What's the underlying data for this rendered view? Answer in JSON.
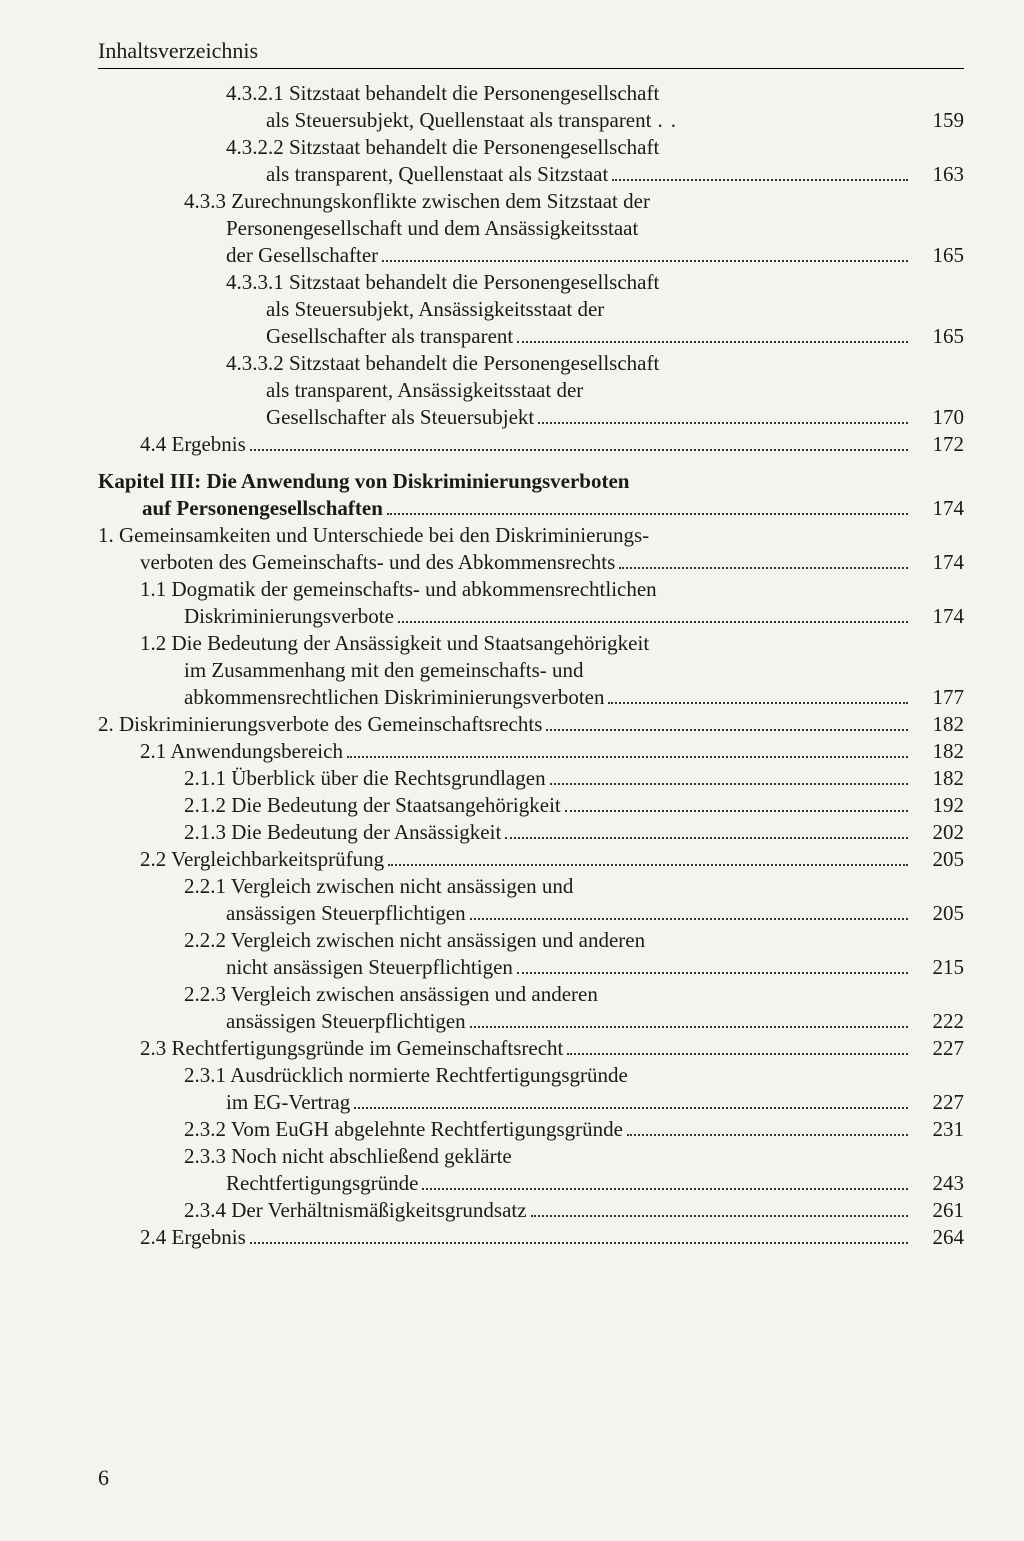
{
  "header": "Inhaltsverzeichnis",
  "page_number": "6",
  "entries": [
    {
      "indent": 3,
      "lines": [
        "4.3.2.1 Sitzstaat behandelt die Personengesellschaft",
        "als Steuersubjekt, Quellenstaat als transparent"
      ],
      "cont_indent": 4,
      "page": "159",
      "dots": "sparse"
    },
    {
      "indent": 3,
      "lines": [
        "4.3.2.2 Sitzstaat behandelt die Personengesellschaft",
        "als transparent, Quellenstaat als Sitzstaat"
      ],
      "cont_indent": 4,
      "page": "163"
    },
    {
      "indent": 2,
      "lines": [
        "4.3.3  Zurechnungskonflikte zwischen dem Sitzstaat der",
        "Personengesellschaft und dem Ansässigkeitsstaat",
        "der Gesellschafter"
      ],
      "cont_indent": 3,
      "page": "165"
    },
    {
      "indent": 3,
      "lines": [
        "4.3.3.1 Sitzstaat behandelt die Personengesellschaft",
        "als Steuersubjekt, Ansässigkeitsstaat der",
        "Gesellschafter als transparent"
      ],
      "cont_indent": 4,
      "page": "165"
    },
    {
      "indent": 3,
      "lines": [
        "4.3.3.2 Sitzstaat behandelt die Personengesellschaft",
        "als transparent, Ansässigkeitsstaat der",
        "Gesellschafter als Steuersubjekt"
      ],
      "cont_indent": 4,
      "page": "170"
    },
    {
      "indent": 1,
      "lines": [
        "4.4  Ergebnis"
      ],
      "page": "172"
    },
    {
      "indent": 0,
      "lines": [
        "Kapitel III: Die Anwendung von Diskriminierungsverboten",
        "auf Personengesellschaften"
      ],
      "cont_indent": 0,
      "cont_pad": 44,
      "page": "174",
      "bold": true,
      "gap_before": 12
    },
    {
      "indent": 0,
      "lines": [
        "1.  Gemeinsamkeiten und Unterschiede bei den Diskriminierungs-",
        "verboten des Gemeinschafts- und des Abkommensrechts"
      ],
      "cont_indent": 1,
      "page": "174"
    },
    {
      "indent": 1,
      "lines": [
        "1.1  Dogmatik der gemeinschafts- und abkommensrechtlichen",
        "Diskriminierungsverbote"
      ],
      "cont_indent": 2,
      "page": "174"
    },
    {
      "indent": 1,
      "lines": [
        "1.2  Die Bedeutung der Ansässigkeit und Staatsangehörigkeit",
        "im Zusammenhang mit den gemeinschafts- und",
        "abkommensrechtlichen Diskriminierungsverboten"
      ],
      "cont_indent": 2,
      "page": "177"
    },
    {
      "indent": 0,
      "lines": [
        "2.  Diskriminierungsverbote des Gemeinschaftsrechts"
      ],
      "page": "182"
    },
    {
      "indent": 1,
      "lines": [
        "2.1  Anwendungsbereich"
      ],
      "page": "182"
    },
    {
      "indent": 2,
      "lines": [
        "2.1.1  Überblick über die Rechtsgrundlagen"
      ],
      "page": "182"
    },
    {
      "indent": 2,
      "lines": [
        "2.1.2  Die Bedeutung der Staatsangehörigkeit"
      ],
      "page": "192"
    },
    {
      "indent": 2,
      "lines": [
        "2.1.3  Die Bedeutung der Ansässigkeit"
      ],
      "page": "202"
    },
    {
      "indent": 1,
      "lines": [
        "2.2  Vergleichbarkeitsprüfung"
      ],
      "page": "205"
    },
    {
      "indent": 2,
      "lines": [
        "2.2.1  Vergleich zwischen nicht ansässigen und",
        "ansässigen Steuerpflichtigen"
      ],
      "cont_indent": 3,
      "page": "205"
    },
    {
      "indent": 2,
      "lines": [
        "2.2.2  Vergleich zwischen nicht ansässigen und anderen",
        "nicht ansässigen Steuerpflichtigen"
      ],
      "cont_indent": 3,
      "page": "215"
    },
    {
      "indent": 2,
      "lines": [
        "2.2.3  Vergleich zwischen ansässigen und anderen",
        "ansässigen Steuerpflichtigen"
      ],
      "cont_indent": 3,
      "page": "222"
    },
    {
      "indent": 1,
      "lines": [
        "2.3  Rechtfertigungsgründe im Gemeinschaftsrecht"
      ],
      "page": "227"
    },
    {
      "indent": 2,
      "lines": [
        "2.3.1  Ausdrücklich normierte Rechtfertigungsgründe",
        "im EG-Vertrag"
      ],
      "cont_indent": 3,
      "page": "227"
    },
    {
      "indent": 2,
      "lines": [
        "2.3.2  Vom EuGH abgelehnte Rechtfertigungsgründe"
      ],
      "page": "231"
    },
    {
      "indent": 2,
      "lines": [
        "2.3.3  Noch nicht abschließend geklärte",
        "Rechtfertigungsgründe"
      ],
      "cont_indent": 3,
      "page": "243"
    },
    {
      "indent": 2,
      "lines": [
        "2.3.4  Der Verhältnismäßigkeitsgrundsatz"
      ],
      "page": "261"
    },
    {
      "indent": 1,
      "lines": [
        "2.4  Ergebnis"
      ],
      "page": "264"
    }
  ]
}
